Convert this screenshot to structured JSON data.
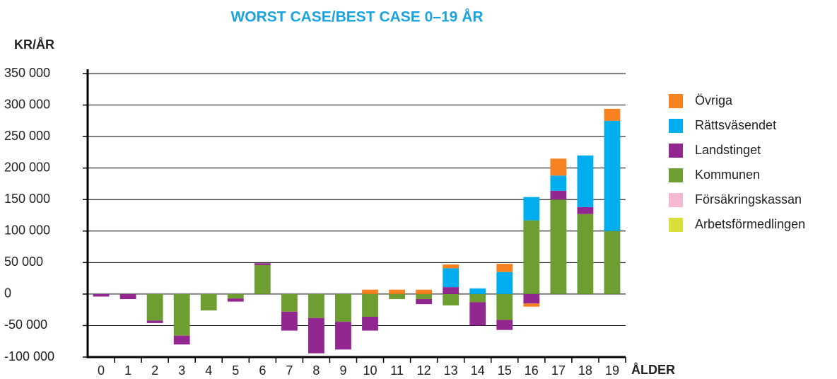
{
  "chart_data": {
    "type": "stacked_bar",
    "title": "WORST CASE/BEST CASE 0–19 ÅR",
    "y_label": "KR/ÅR",
    "x_label": "ÅLDER",
    "categories": [
      "0",
      "1",
      "2",
      "3",
      "4",
      "5",
      "6",
      "7",
      "8",
      "9",
      "10",
      "11",
      "12",
      "13",
      "14",
      "15",
      "16",
      "17",
      "18",
      "19"
    ],
    "ylim": [
      -100000,
      350000
    ],
    "yticks": [
      {
        "value": -100000,
        "label": "-100 000"
      },
      {
        "value": -50000,
        "label": "-50 000"
      },
      0,
      {
        "value": 50000,
        "label": "50 000"
      },
      {
        "value": 100000,
        "label": "100 000"
      },
      {
        "value": 150000,
        "label": "150 000"
      },
      {
        "value": 200000,
        "label": "200 000"
      },
      {
        "value": 250000,
        "label": "250 000"
      },
      {
        "value": 300000,
        "label": "300 000"
      },
      {
        "value": 350000,
        "label": "350 000"
      }
    ],
    "grid": true,
    "legend": "right",
    "series": [
      {
        "name": "Arbetsförmedlingen",
        "color": "#d7df3a",
        "values": [
          0,
          0,
          0,
          0,
          0,
          0,
          0,
          0,
          0,
          0,
          0,
          0,
          0,
          0,
          0,
          0,
          0,
          0,
          0,
          0
        ]
      },
      {
        "name": "Försäkringskassan",
        "color": "#f5b8d3",
        "values": [
          0,
          0,
          0,
          0,
          0,
          0,
          0,
          0,
          0,
          0,
          0,
          0,
          0,
          0,
          0,
          0,
          0,
          0,
          0,
          0
        ]
      },
      {
        "name": "Kommunen",
        "color": "#6e9d31",
        "values": [
          0,
          0,
          -42000,
          -66000,
          -26000,
          -7000,
          46000,
          -28000,
          -38000,
          -44000,
          -36000,
          -8000,
          -8000,
          -18000,
          -13000,
          -41000,
          117000,
          150000,
          127000,
          100000
        ]
      },
      {
        "name": "Landstinget",
        "color": "#92278f",
        "values": [
          -4000,
          -8000,
          -4000,
          -14000,
          0,
          -5000,
          3000,
          -30000,
          -56000,
          -44000,
          -22000,
          0,
          -8000,
          11000,
          -37000,
          -16000,
          -15000,
          14000,
          11000,
          0
        ]
      },
      {
        "name": "Rättsväsendet",
        "color": "#00aeef",
        "values": [
          0,
          0,
          0,
          0,
          0,
          0,
          0,
          0,
          0,
          0,
          0,
          0,
          0,
          30000,
          9000,
          35000,
          37000,
          24000,
          82000,
          175000
        ]
      },
      {
        "name": "Övriga",
        "color": "#f5821f",
        "values": [
          0,
          0,
          0,
          0,
          0,
          0,
          0,
          0,
          0,
          0,
          7000,
          7000,
          7000,
          6000,
          0,
          13000,
          -5000,
          27000,
          0,
          19000
        ]
      }
    ]
  }
}
